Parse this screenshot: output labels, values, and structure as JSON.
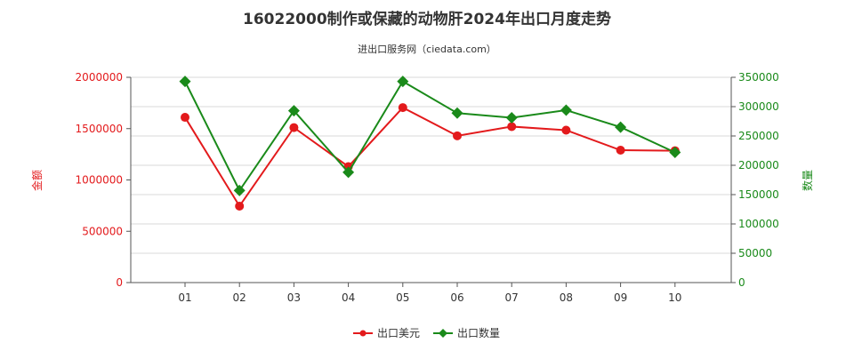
{
  "chart_data": {
    "type": "line",
    "title": "16022000制作或保藏的动物肝2024年出口月度走势",
    "subtitle": "进出口服务网（ciedata.com）",
    "x": [
      "01",
      "02",
      "03",
      "04",
      "05",
      "06",
      "07",
      "08",
      "09",
      "10"
    ],
    "left_axis": {
      "label": "金额",
      "range": [
        0,
        2000000
      ],
      "ticks": [
        0,
        500000,
        1000000,
        1500000,
        2000000
      ],
      "tick_labels": [
        "0",
        "500000",
        "1000000",
        "1500000",
        "2000000"
      ],
      "color": "#e31a1c"
    },
    "right_axis": {
      "label": "数量",
      "range": [
        0,
        350000
      ],
      "ticks": [
        0,
        50000,
        100000,
        150000,
        200000,
        250000,
        300000,
        350000
      ],
      "tick_labels": [
        "0",
        "50000",
        "100000",
        "150000",
        "200000",
        "250000",
        "300000",
        "350000"
      ],
      "color": "#1a8a1a"
    },
    "series": [
      {
        "name": "出口美元",
        "axis": "left",
        "color": "#e31a1c",
        "marker": "circle",
        "values": [
          1610000,
          745000,
          1510000,
          1130000,
          1705000,
          1430000,
          1520000,
          1485000,
          1290000,
          1285000
        ]
      },
      {
        "name": "出口数量",
        "axis": "right",
        "color": "#1a8a1a",
        "marker": "diamond",
        "values": [
          343000,
          157000,
          293000,
          188000,
          343000,
          289000,
          281000,
          294000,
          265000,
          222000
        ]
      }
    ],
    "grid": true,
    "legend_position": "bottom-center"
  }
}
